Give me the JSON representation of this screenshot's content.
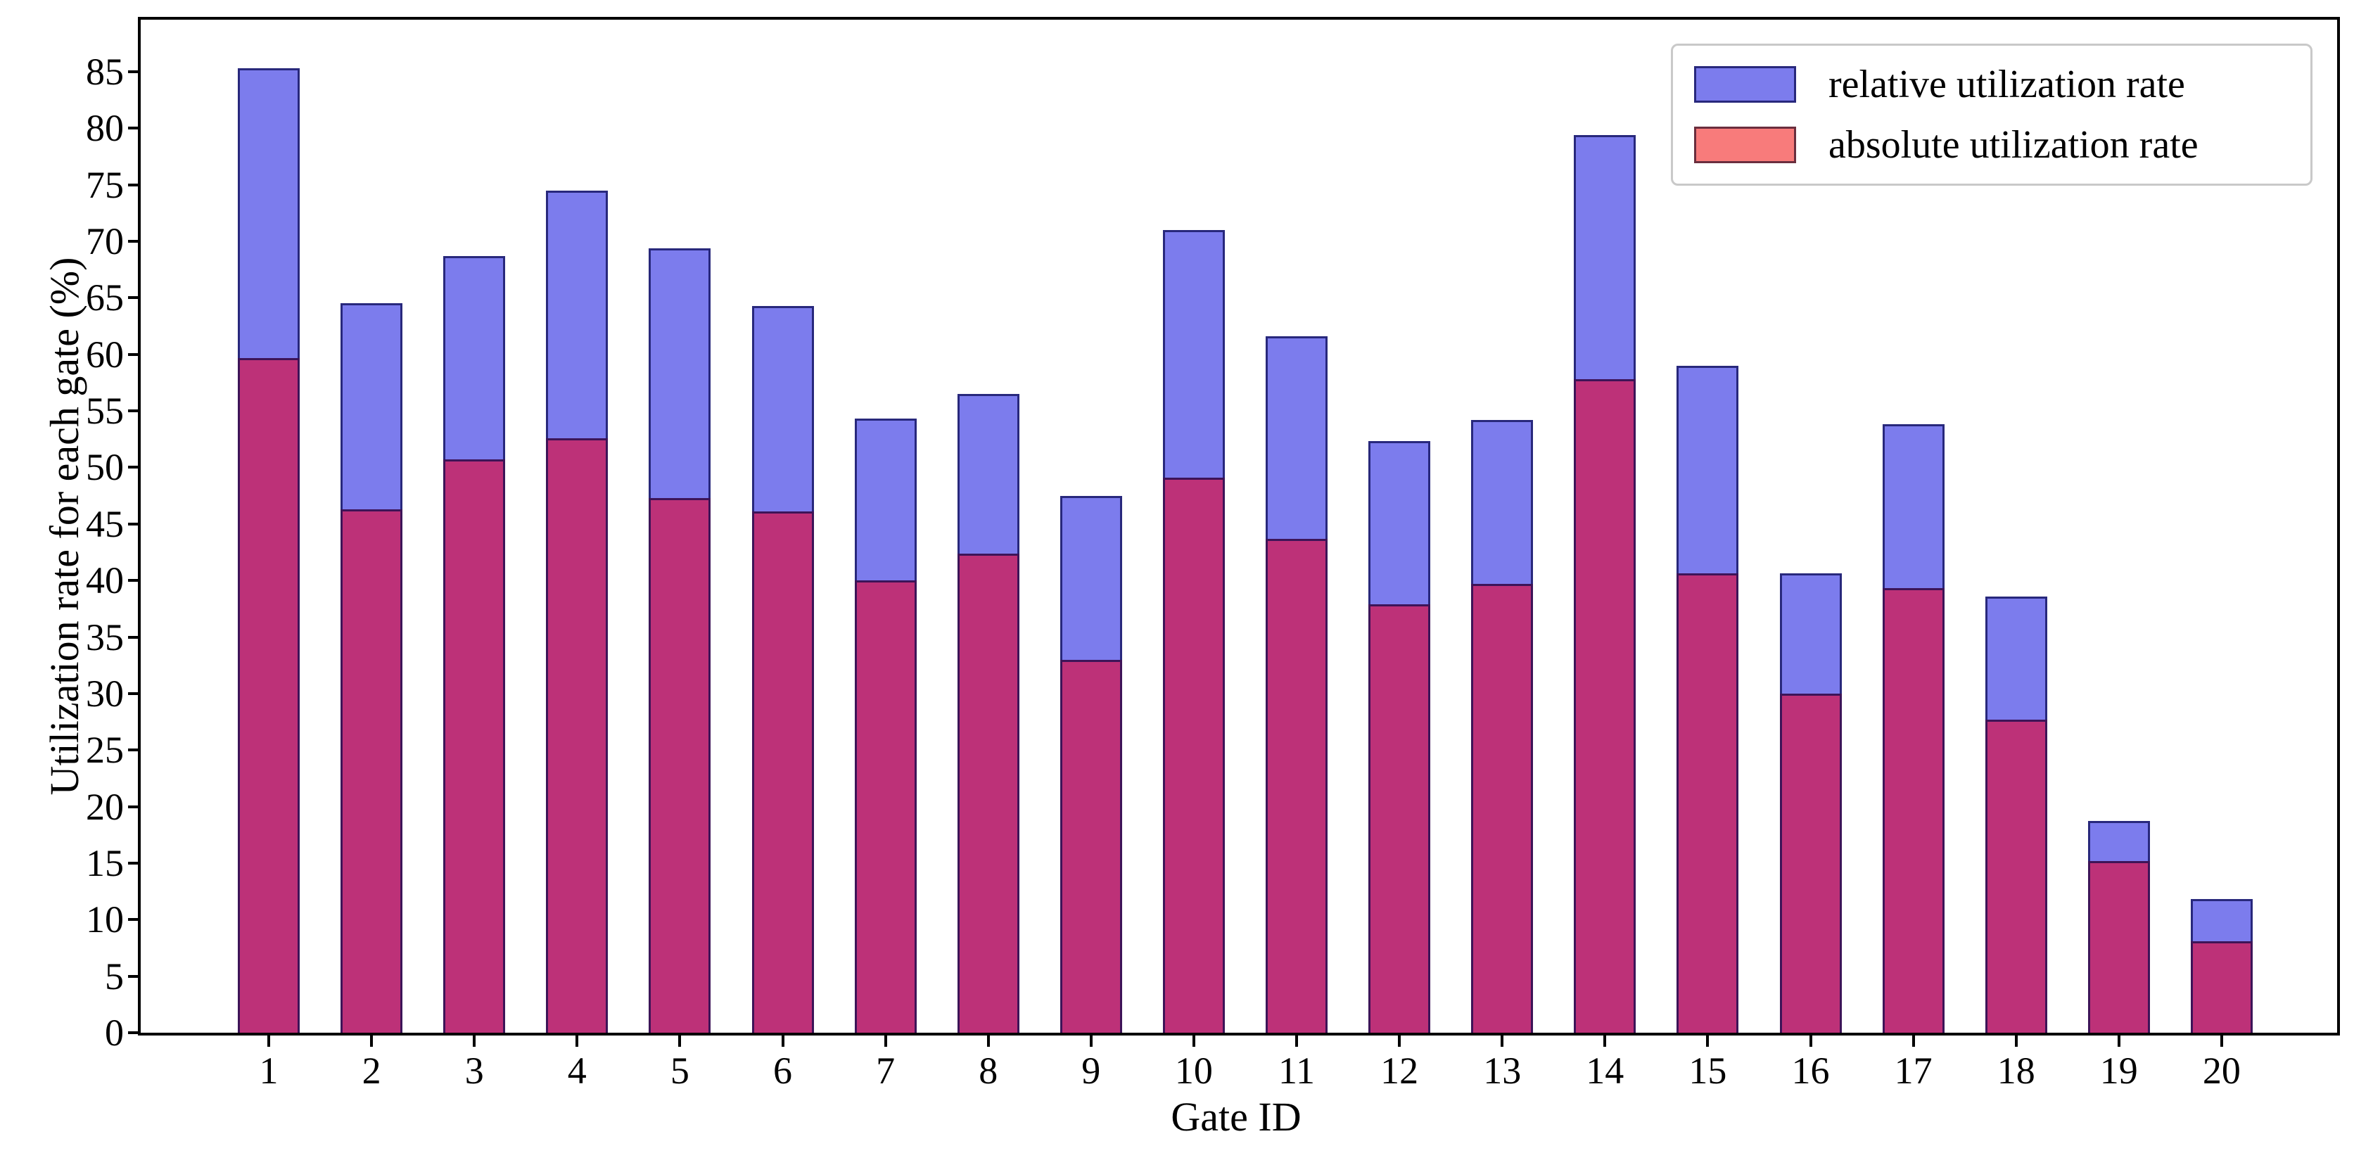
{
  "figure": {
    "background": "#ffffff"
  },
  "axes": {
    "xlabel": "Gate ID",
    "ylabel": "Utilization rate for each gate (%)",
    "ymax": 89.6,
    "yticks": [
      0,
      5,
      10,
      15,
      20,
      25,
      30,
      35,
      40,
      45,
      50,
      55,
      60,
      65,
      70,
      75,
      80,
      85
    ],
    "spine_color": "#000000"
  },
  "legend": {
    "items": [
      {
        "label": "relative utilization rate",
        "fill": "#7c7ced",
        "edge": "#28287c"
      },
      {
        "label": "absolute utilization rate",
        "fill": "#f87b7b",
        "edge": "#6a2e3e"
      }
    ]
  },
  "chart_data": {
    "type": "bar",
    "title": "",
    "xlabel": "Gate ID",
    "ylabel": "Utilization rate for each gate (%)",
    "ylim": [
      0,
      89.6
    ],
    "grid": false,
    "legend_position": "upper right",
    "categories": [
      "1",
      "2",
      "3",
      "4",
      "5",
      "6",
      "7",
      "8",
      "9",
      "10",
      "11",
      "12",
      "13",
      "14",
      "15",
      "16",
      "17",
      "18",
      "19",
      "20"
    ],
    "series": [
      {
        "name": "relative utilization rate",
        "note": "full bar height (blue), percent",
        "fill": "#7c7ced",
        "edge": "#28287c",
        "values": [
          85.3,
          64.5,
          68.7,
          74.5,
          69.4,
          64.3,
          54.3,
          56.5,
          47.5,
          71.0,
          61.6,
          52.3,
          54.2,
          79.4,
          59.0,
          40.6,
          53.8,
          38.6,
          18.7,
          11.8
        ]
      },
      {
        "name": "absolute utilization rate",
        "note": "overlaid bar height (red over blue renders magenta), percent",
        "fill": "#bd3178",
        "edge": "#3d1458",
        "values": [
          59.7,
          46.3,
          50.7,
          52.6,
          47.3,
          46.1,
          40.0,
          42.4,
          33.0,
          49.1,
          43.7,
          37.9,
          39.7,
          57.8,
          40.6,
          30.0,
          39.3,
          27.7,
          15.2,
          8.1
        ]
      }
    ]
  }
}
